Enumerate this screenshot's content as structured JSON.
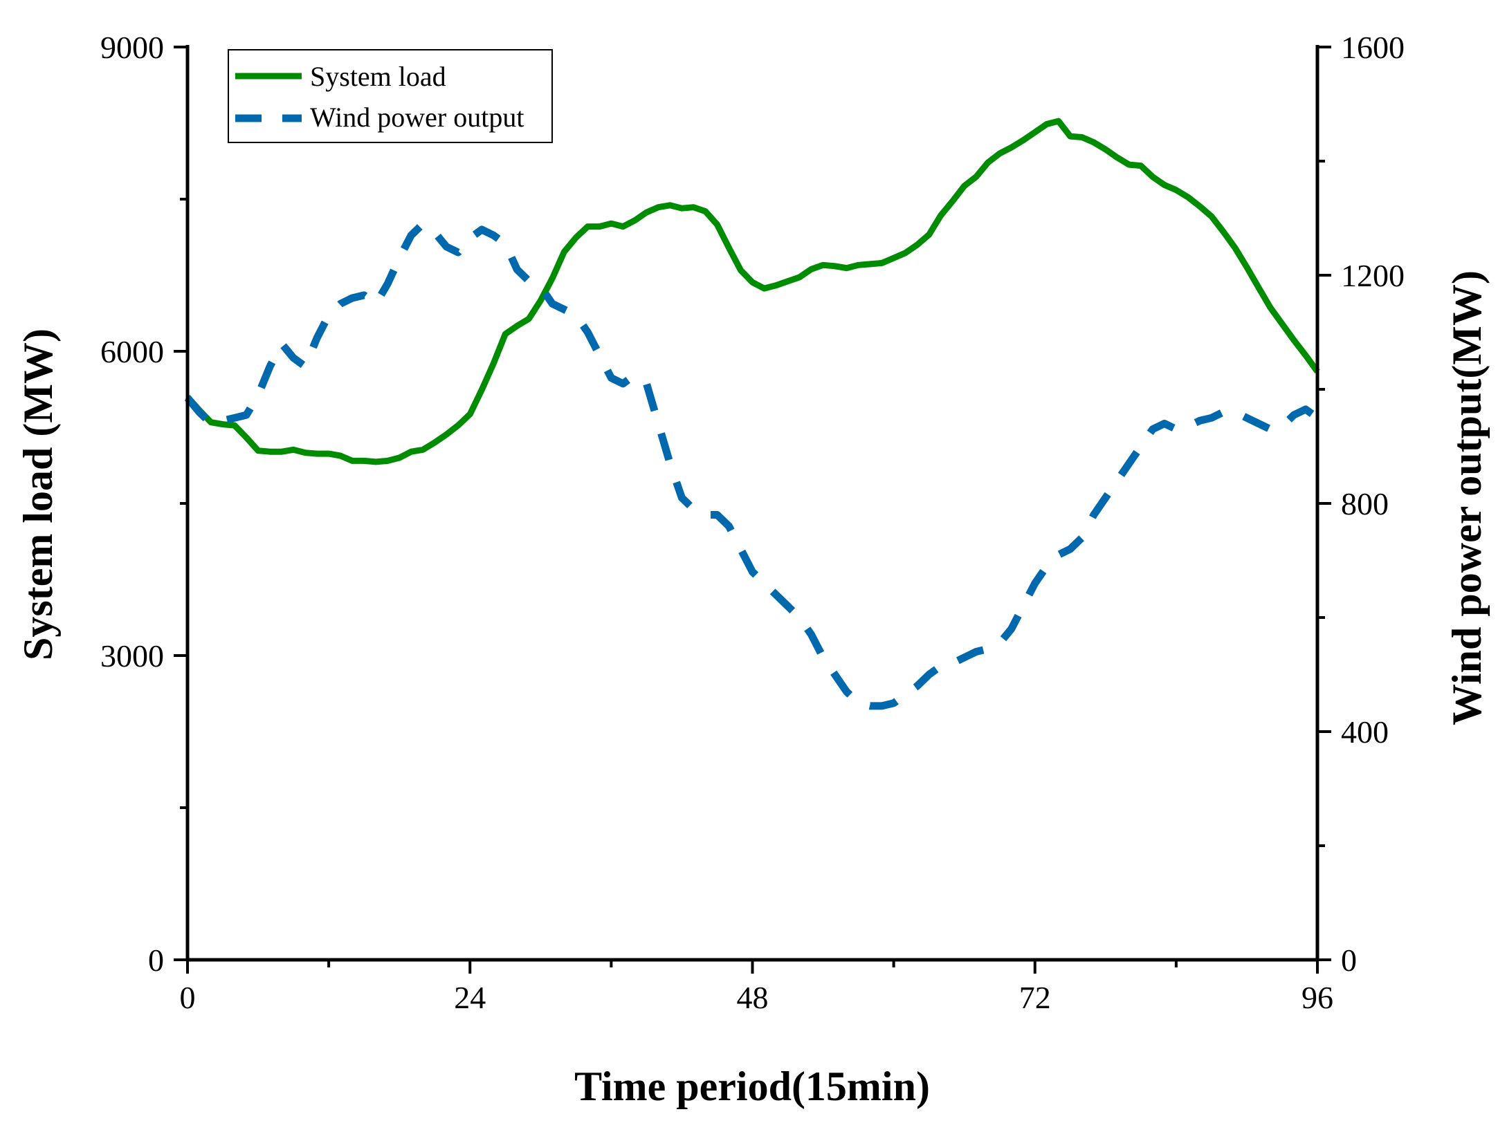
{
  "chart_data": {
    "type": "line",
    "title": "",
    "xlabel": "Time period(15min)",
    "ylabel_left": "System load (MW)",
    "ylabel_right": "Wind power output(MW)",
    "xlim": [
      0,
      96
    ],
    "ylim_left": [
      0,
      9000
    ],
    "ylim_right": [
      0,
      1600
    ],
    "x_ticks": [
      "0",
      "24",
      "48",
      "72",
      "96"
    ],
    "y_left_ticks": [
      "0",
      "3000",
      "6000",
      "9000"
    ],
    "y_right_ticks": [
      "0",
      "400",
      "800",
      "1200",
      "1600"
    ],
    "legend_position": "top-left",
    "colors": {
      "system_load": "#008c00",
      "wind_power": "#0068ad"
    },
    "x": [
      0,
      1,
      2,
      3,
      4,
      5,
      6,
      7,
      8,
      9,
      10,
      11,
      12,
      13,
      14,
      15,
      16,
      17,
      18,
      19,
      20,
      21,
      22,
      23,
      24,
      25,
      26,
      27,
      28,
      29,
      30,
      31,
      32,
      33,
      34,
      35,
      36,
      37,
      38,
      39,
      40,
      41,
      42,
      43,
      44,
      45,
      46,
      47,
      48,
      49,
      50,
      51,
      52,
      53,
      54,
      55,
      56,
      57,
      58,
      59,
      60,
      61,
      62,
      63,
      64,
      65,
      66,
      67,
      68,
      69,
      70,
      71,
      72,
      73,
      74,
      75,
      76,
      77,
      78,
      79,
      80,
      81,
      82,
      83,
      84,
      85,
      86,
      87,
      88,
      89,
      90,
      91,
      92,
      93,
      94,
      95,
      96
    ],
    "series": [
      {
        "name": "System load",
        "axis": "left",
        "style": "solid",
        "values": [
          5550,
          5420,
          5300,
          5280,
          5270,
          5150,
          5020,
          5010,
          5010,
          5030,
          5000,
          4990,
          4990,
          4970,
          4920,
          4920,
          4910,
          4920,
          4950,
          5010,
          5030,
          5100,
          5180,
          5270,
          5380,
          5620,
          5880,
          6170,
          6250,
          6320,
          6500,
          6720,
          6980,
          7120,
          7230,
          7230,
          7260,
          7230,
          7290,
          7370,
          7420,
          7440,
          7410,
          7420,
          7380,
          7250,
          7020,
          6800,
          6680,
          6620,
          6650,
          6690,
          6730,
          6810,
          6850,
          6840,
          6820,
          6850,
          6860,
          6870,
          6920,
          6970,
          7050,
          7150,
          7340,
          7480,
          7630,
          7720,
          7860,
          7950,
          8010,
          8080,
          8160,
          8240,
          8270,
          8120,
          8110,
          8060,
          7990,
          7910,
          7840,
          7830,
          7720,
          7640,
          7590,
          7520,
          7430,
          7330,
          7180,
          7020,
          6830,
          6630,
          6430,
          6270,
          6110,
          5960,
          5800
        ]
      },
      {
        "name": "Wind power output",
        "axis": "right",
        "style": "dashed",
        "values": [
          985,
          960,
          940,
          945,
          950,
          955,
          990,
          1040,
          1080,
          1055,
          1040,
          1090,
          1130,
          1150,
          1160,
          1165,
          1150,
          1185,
          1230,
          1270,
          1290,
          1275,
          1250,
          1240,
          1265,
          1280,
          1270,
          1255,
          1210,
          1190,
          1180,
          1150,
          1140,
          1130,
          1100,
          1060,
          1020,
          1010,
          1025,
          1010,
          940,
          870,
          810,
          790,
          780,
          780,
          760,
          720,
          680,
          660,
          640,
          620,
          600,
          570,
          530,
          500,
          470,
          450,
          445,
          445,
          450,
          465,
          480,
          500,
          515,
          520,
          530,
          540,
          545,
          555,
          580,
          620,
          660,
          690,
          710,
          720,
          740,
          780,
          810,
          840,
          870,
          900,
          930,
          940,
          930,
          935,
          945,
          950,
          960,
          960,
          950,
          940,
          930,
          935,
          955,
          965,
          950
        ]
      }
    ]
  },
  "legend": {
    "items": [
      "System load",
      "Wind power output"
    ]
  }
}
